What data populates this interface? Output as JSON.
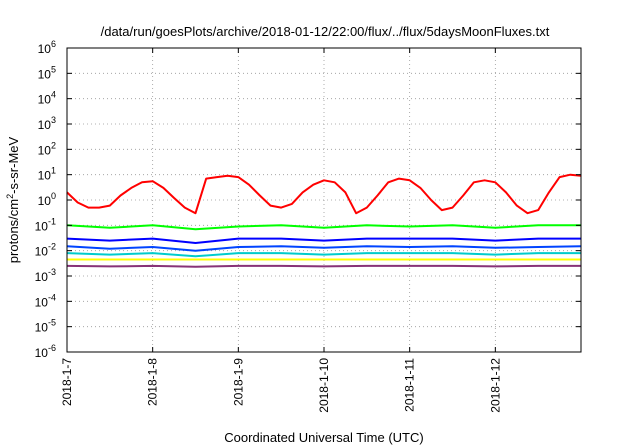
{
  "chart_data": {
    "type": "line",
    "title": "/data/run/goesPlots/archive/2018-01-12/22:00/flux/../flux/5daysMoonFluxes.txt",
    "xlabel": "Coordinated Universal Time (UTC)",
    "ylabel": {
      "base": "protons/cm",
      "sup": "2",
      "rest": "-s-sr-MeV"
    },
    "yscale": "log",
    "xlim": [
      "2018-01-07T00:00",
      "2018-01-13T00:00"
    ],
    "ylim": [
      1e-06,
      1000000.0
    ],
    "grid": true,
    "legend": "none",
    "x_ticks": [
      "2018-1-7",
      "2018-1-8",
      "2018-1-9",
      "2018-1-10",
      "2018-1-11",
      "2018-1-12"
    ],
    "y_ticks": [
      {
        "value": 1e-06,
        "base": "10",
        "exp": "-6"
      },
      {
        "value": 1e-05,
        "base": "10",
        "exp": "-5"
      },
      {
        "value": 0.0001,
        "base": "10",
        "exp": "-4"
      },
      {
        "value": 0.001,
        "base": "10",
        "exp": "-3"
      },
      {
        "value": 0.01,
        "base": "10",
        "exp": "-2"
      },
      {
        "value": 0.1,
        "base": "10",
        "exp": "-1"
      },
      {
        "value": 1,
        "base": "10",
        "exp": "0"
      },
      {
        "value": 10,
        "base": "10",
        "exp": "1"
      },
      {
        "value": 100,
        "base": "10",
        "exp": "2"
      },
      {
        "value": 1000,
        "base": "10",
        "exp": "3"
      },
      {
        "value": 10000,
        "base": "10",
        "exp": "4"
      },
      {
        "value": 100000,
        "base": "10",
        "exp": "5"
      },
      {
        "value": 1000000,
        "base": "10",
        "exp": "6"
      }
    ],
    "series": [
      {
        "color": "#ff0000",
        "x": [
          "2018-01-07T00:00",
          "2018-01-07T03:00",
          "2018-01-07T06:00",
          "2018-01-07T09:00",
          "2018-01-07T12:00",
          "2018-01-07T15:00",
          "2018-01-07T18:00",
          "2018-01-07T21:00",
          "2018-01-08T00:00",
          "2018-01-08T03:00",
          "2018-01-08T06:00",
          "2018-01-08T09:00",
          "2018-01-08T12:00",
          "2018-01-08T15:00",
          "2018-01-08T18:00",
          "2018-01-08T21:00",
          "2018-01-09T00:00",
          "2018-01-09T03:00",
          "2018-01-09T06:00",
          "2018-01-09T09:00",
          "2018-01-09T12:00",
          "2018-01-09T15:00",
          "2018-01-09T18:00",
          "2018-01-09T21:00",
          "2018-01-10T00:00",
          "2018-01-10T03:00",
          "2018-01-10T06:00",
          "2018-01-10T09:00",
          "2018-01-10T12:00",
          "2018-01-10T15:00",
          "2018-01-10T18:00",
          "2018-01-10T21:00",
          "2018-01-11T00:00",
          "2018-01-11T03:00",
          "2018-01-11T06:00",
          "2018-01-11T09:00",
          "2018-01-11T12:00",
          "2018-01-11T15:00",
          "2018-01-11T18:00",
          "2018-01-11T21:00",
          "2018-01-12T00:00",
          "2018-01-12T03:00",
          "2018-01-12T06:00",
          "2018-01-12T09:00",
          "2018-01-12T12:00",
          "2018-01-12T15:00",
          "2018-01-12T18:00",
          "2018-01-12T21:00",
          "2018-01-12T23:59"
        ],
        "y": [
          2,
          0.8,
          0.5,
          0.5,
          0.6,
          1.5,
          3,
          5,
          5.5,
          3,
          1.2,
          0.5,
          0.3,
          7,
          8,
          9,
          8,
          4,
          1.5,
          0.6,
          0.5,
          0.7,
          2,
          4,
          6,
          5,
          2,
          0.3,
          0.5,
          1.5,
          5,
          7,
          6,
          3,
          1,
          0.4,
          0.5,
          1.5,
          5,
          6,
          5,
          2,
          0.6,
          0.3,
          0.4,
          2,
          8,
          10,
          9
        ]
      },
      {
        "color": "#00ff00",
        "x": [
          "2018-01-07T00:00",
          "2018-01-07T12:00",
          "2018-01-08T00:00",
          "2018-01-08T12:00",
          "2018-01-09T00:00",
          "2018-01-09T12:00",
          "2018-01-10T00:00",
          "2018-01-10T12:00",
          "2018-01-11T00:00",
          "2018-01-11T12:00",
          "2018-01-12T00:00",
          "2018-01-12T12:00",
          "2018-01-12T23:59"
        ],
        "y": [
          0.1,
          0.08,
          0.1,
          0.07,
          0.09,
          0.1,
          0.08,
          0.1,
          0.09,
          0.1,
          0.08,
          0.1,
          0.1
        ]
      },
      {
        "color": "#0000ff",
        "x": [
          "2018-01-07T00:00",
          "2018-01-07T12:00",
          "2018-01-08T00:00",
          "2018-01-08T12:00",
          "2018-01-09T00:00",
          "2018-01-09T12:00",
          "2018-01-10T00:00",
          "2018-01-10T12:00",
          "2018-01-11T00:00",
          "2018-01-11T12:00",
          "2018-01-12T00:00",
          "2018-01-12T12:00",
          "2018-01-12T23:59"
        ],
        "y": [
          0.03,
          0.025,
          0.03,
          0.02,
          0.03,
          0.03,
          0.025,
          0.03,
          0.03,
          0.03,
          0.025,
          0.03,
          0.03
        ]
      },
      {
        "color": "#0044ff",
        "x": [
          "2018-01-07T00:00",
          "2018-01-07T12:00",
          "2018-01-08T00:00",
          "2018-01-08T12:00",
          "2018-01-09T00:00",
          "2018-01-09T12:00",
          "2018-01-10T00:00",
          "2018-01-10T12:00",
          "2018-01-11T00:00",
          "2018-01-11T12:00",
          "2018-01-12T00:00",
          "2018-01-12T12:00",
          "2018-01-12T23:59"
        ],
        "y": [
          0.015,
          0.012,
          0.014,
          0.01,
          0.014,
          0.015,
          0.013,
          0.015,
          0.014,
          0.015,
          0.013,
          0.014,
          0.015
        ]
      },
      {
        "color": "#00cccc",
        "x": [
          "2018-01-07T00:00",
          "2018-01-07T12:00",
          "2018-01-08T00:00",
          "2018-01-08T12:00",
          "2018-01-09T00:00",
          "2018-01-09T12:00",
          "2018-01-10T00:00",
          "2018-01-10T12:00",
          "2018-01-11T00:00",
          "2018-01-11T12:00",
          "2018-01-12T00:00",
          "2018-01-12T12:00",
          "2018-01-12T23:59"
        ],
        "y": [
          0.008,
          0.007,
          0.008,
          0.006,
          0.008,
          0.008,
          0.007,
          0.008,
          0.008,
          0.008,
          0.007,
          0.008,
          0.008
        ]
      },
      {
        "color": "#ffff00",
        "x": [
          "2018-01-07T00:00",
          "2018-01-12T23:59"
        ],
        "y": [
          0.0045,
          0.0045
        ]
      },
      {
        "color": "#883377",
        "x": [
          "2018-01-07T00:00",
          "2018-01-07T12:00",
          "2018-01-08T00:00",
          "2018-01-08T12:00",
          "2018-01-09T00:00",
          "2018-01-09T12:00",
          "2018-01-10T00:00",
          "2018-01-10T12:00",
          "2018-01-11T00:00",
          "2018-01-11T12:00",
          "2018-01-12T00:00",
          "2018-01-12T12:00",
          "2018-01-12T23:59"
        ],
        "y": [
          0.0025,
          0.0024,
          0.0025,
          0.0023,
          0.0025,
          0.0025,
          0.0024,
          0.0025,
          0.0025,
          0.0025,
          0.0024,
          0.0025,
          0.0025
        ]
      }
    ]
  }
}
